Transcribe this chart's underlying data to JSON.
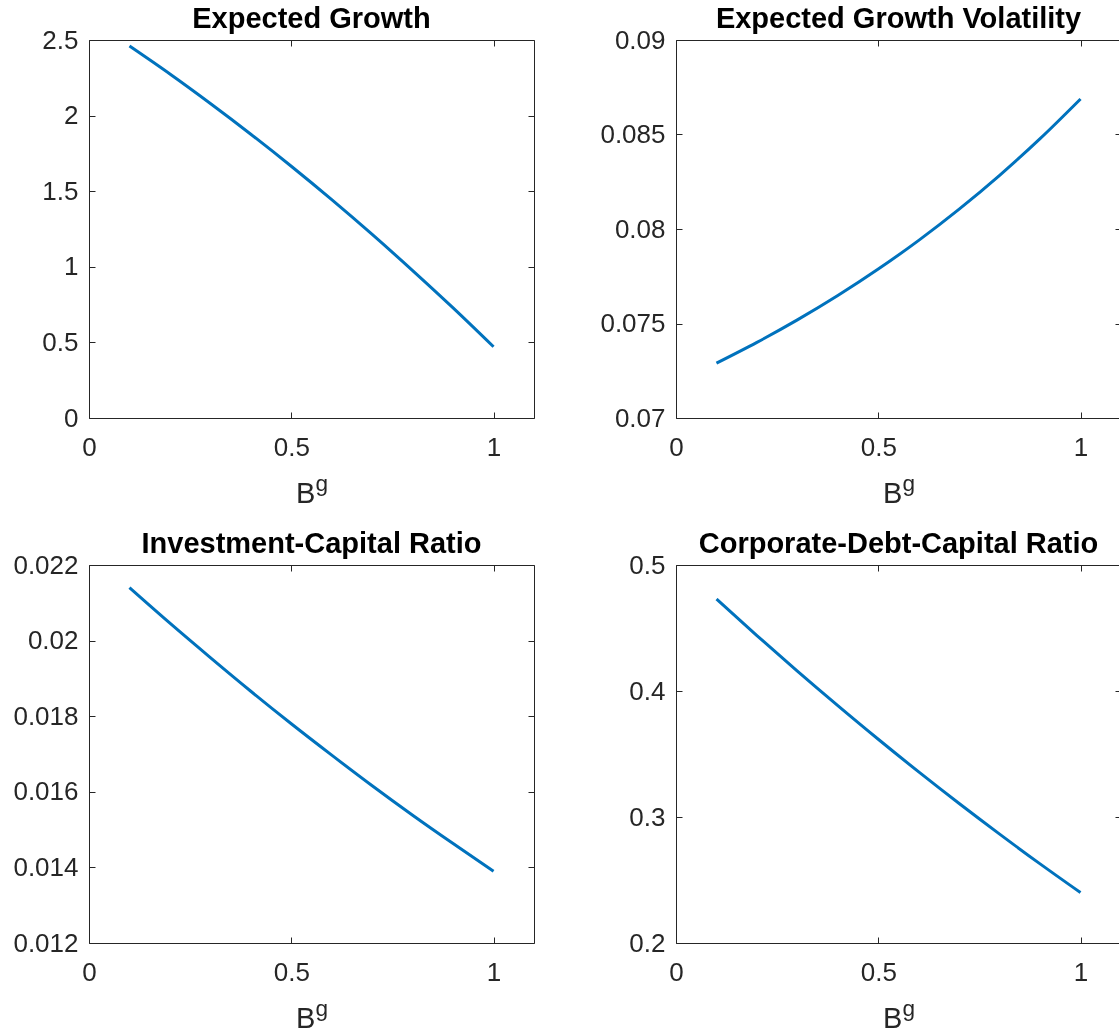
{
  "chart_data": [
    {
      "type": "line",
      "title": "Expected Growth",
      "xlabel": "B$^{g}$",
      "x": [
        0.1,
        0.2,
        0.3,
        0.4,
        0.5,
        0.6,
        0.7,
        0.8,
        0.9,
        1.0
      ],
      "series": [
        {
          "color": "#0072bd",
          "values": [
            2.46,
            2.275,
            2.08,
            1.877,
            1.665,
            1.444,
            1.214,
            0.975,
            0.728,
            0.471
          ]
        }
      ],
      "xlim": [
        0,
        1.1
      ],
      "xticks": [
        0,
        0.5,
        1
      ],
      "ylim": [
        0,
        2.5
      ],
      "yticks": [
        0,
        0.5,
        1,
        1.5,
        2,
        2.5
      ]
    },
    {
      "type": "line",
      "title": "Expected Growth Volatility",
      "xlabel": "B$^{g}$",
      "x": [
        0.1,
        0.2,
        0.3,
        0.4,
        0.5,
        0.6,
        0.7,
        0.8,
        0.9,
        1.0
      ],
      "series": [
        {
          "color": "#0072bd",
          "values": [
            0.0729,
            0.074,
            0.07519,
            0.07648,
            0.07788,
            0.0794,
            0.08105,
            0.08284,
            0.08478,
            0.08688
          ]
        }
      ],
      "xlim": [
        0,
        1.1
      ],
      "xticks": [
        0,
        0.5,
        1
      ],
      "ylim": [
        0.07,
        0.09
      ],
      "yticks": [
        0.07,
        0.075,
        0.08,
        0.085,
        0.09
      ]
    },
    {
      "type": "line",
      "title": "Investment-Capital Ratio",
      "xlabel": "B$^{g}$",
      "x": [
        0.1,
        0.2,
        0.3,
        0.4,
        0.5,
        0.6,
        0.7,
        0.8,
        0.9,
        1.0
      ],
      "series": [
        {
          "color": "#0072bd",
          "values": [
            0.0214,
            0.02046,
            0.01955,
            0.01866,
            0.0178,
            0.01697,
            0.01616,
            0.01538,
            0.01463,
            0.0139
          ]
        }
      ],
      "xlim": [
        0,
        1.1
      ],
      "xticks": [
        0,
        0.5,
        1
      ],
      "ylim": [
        0.012,
        0.022
      ],
      "yticks": [
        0.012,
        0.014,
        0.016,
        0.018,
        0.02,
        0.022
      ]
    },
    {
      "type": "line",
      "title": "Corporate-Debt-Capital Ratio",
      "xlabel": "B$^{g}$",
      "x": [
        0.1,
        0.2,
        0.3,
        0.4,
        0.5,
        0.6,
        0.7,
        0.8,
        0.9,
        1.0
      ],
      "series": [
        {
          "color": "#0072bd",
          "values": [
            0.473,
            0.444,
            0.4158,
            0.3884,
            0.3617,
            0.3358,
            0.3107,
            0.2864,
            0.2628,
            0.24
          ]
        }
      ],
      "xlim": [
        0,
        1.1
      ],
      "xticks": [
        0,
        0.5,
        1
      ],
      "ylim": [
        0.2,
        0.5
      ],
      "yticks": [
        0.2,
        0.3,
        0.4,
        0.5
      ]
    }
  ]
}
